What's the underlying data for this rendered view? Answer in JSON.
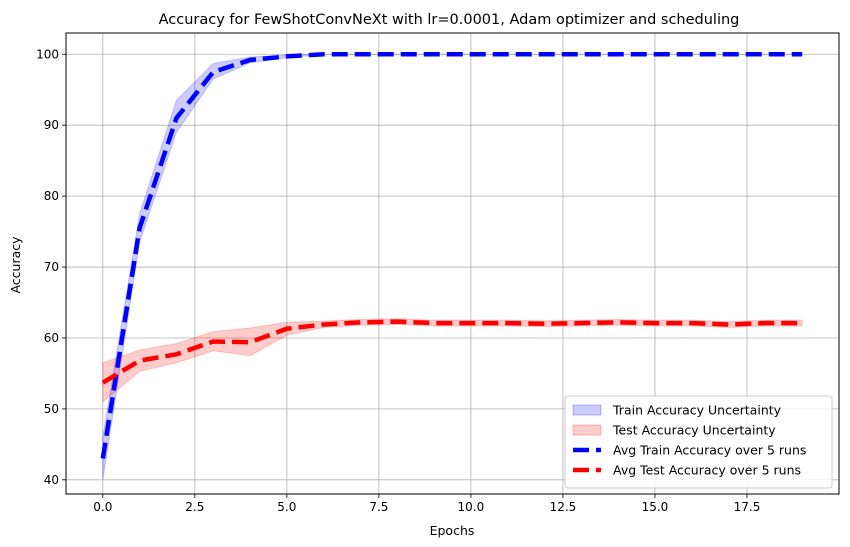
{
  "chart_data": {
    "type": "line",
    "title": "Accuracy for FewShotConvNeXt with lr=0.0001, Adam optimizer and scheduling",
    "xlabel": "Epochs",
    "ylabel": "Accuracy",
    "xlim": [
      -1,
      20
    ],
    "ylim": [
      38,
      103
    ],
    "xticks": [
      0.0,
      2.5,
      5.0,
      7.5,
      10.0,
      12.5,
      15.0,
      17.5
    ],
    "xtick_labels": [
      "0.0",
      "2.5",
      "5.0",
      "7.5",
      "10.0",
      "12.5",
      "15.0",
      "17.5"
    ],
    "yticks": [
      40,
      50,
      60,
      70,
      80,
      90,
      100
    ],
    "ytick_labels": [
      "40",
      "50",
      "60",
      "70",
      "80",
      "90",
      "100"
    ],
    "grid": true,
    "legend_position": "lower-right",
    "x": [
      0,
      1,
      2,
      3,
      4,
      5,
      6,
      7,
      8,
      9,
      10,
      11,
      12,
      13,
      14,
      15,
      16,
      17,
      18,
      19
    ],
    "series": [
      {
        "name": "Avg Train Accuracy over 5 runs",
        "color": "#0000ff",
        "style": "dashed",
        "values": [
          43.0,
          75.5,
          91.0,
          97.5,
          99.2,
          99.7,
          100,
          100,
          100,
          100,
          100,
          100,
          100,
          100,
          100,
          100,
          100,
          100,
          100,
          100
        ],
        "band_name": "Train Accuracy Uncertainty",
        "band_color": "#0000ff",
        "lower": [
          40.0,
          73.5,
          89.0,
          96.5,
          98.8,
          99.5,
          100,
          100,
          100,
          100,
          100,
          100,
          100,
          100,
          100,
          100,
          100,
          100,
          100,
          100
        ],
        "upper": [
          46.0,
          77.5,
          93.5,
          98.7,
          99.6,
          99.9,
          100,
          100,
          100,
          100,
          100,
          100,
          100,
          100,
          100,
          100,
          100,
          100,
          100,
          100
        ]
      },
      {
        "name": "Avg Test Accuracy over 5 runs",
        "color": "#ff0000",
        "style": "dashed",
        "values": [
          53.7,
          56.8,
          57.7,
          59.5,
          59.4,
          61.3,
          61.9,
          62.2,
          62.3,
          62.1,
          62.1,
          62.1,
          62.0,
          62.1,
          62.2,
          62.1,
          62.1,
          61.9,
          62.1,
          62.1
        ],
        "band_name": "Test Accuracy Uncertainty",
        "band_color": "#ff0000",
        "lower": [
          51.0,
          55.3,
          56.5,
          58.2,
          57.5,
          60.4,
          61.5,
          61.8,
          61.9,
          61.7,
          61.7,
          61.7,
          61.6,
          61.7,
          61.8,
          61.7,
          61.7,
          61.5,
          61.7,
          61.7
        ],
        "upper": [
          56.5,
          58.3,
          59.2,
          60.9,
          61.4,
          62.2,
          62.4,
          62.6,
          62.7,
          62.5,
          62.5,
          62.5,
          62.4,
          62.5,
          62.6,
          62.5,
          62.5,
          62.3,
          62.5,
          62.5
        ]
      }
    ]
  }
}
